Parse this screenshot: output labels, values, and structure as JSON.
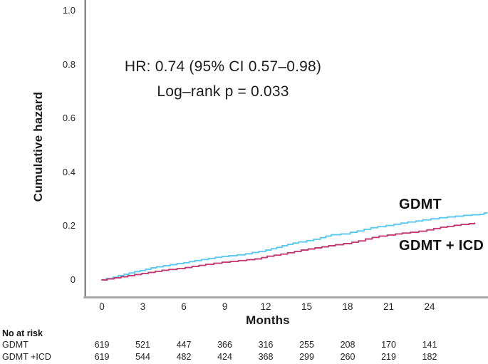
{
  "figure": {
    "annotation": {
      "line1": "HR: 0.74 (95% CI 0.57–0.98)",
      "line2": "Log–rank p = 0.033"
    },
    "y_axis_title": "Cumulative hazard",
    "x_axis_title": "Months",
    "curve_labels": {
      "gdmt": "GDMT",
      "gdmt_icd": "GDMT + ICD"
    },
    "risk_table_header": "No at risk"
  },
  "chart_data": {
    "type": "line",
    "subtype": "step-cumulative-hazard",
    "title": "",
    "xlabel": "Months",
    "ylabel": "Cumulative hazard",
    "xlim": [
      0,
      28.3
    ],
    "ylim": [
      0,
      1.0
    ],
    "x_ticks": [
      0,
      3,
      6,
      9,
      12,
      15,
      18,
      21,
      24
    ],
    "y_ticks": [
      0,
      0.2,
      0.4,
      0.6,
      0.8,
      1.0
    ],
    "grid": false,
    "legend_position": "curve-end-labels",
    "annotations": [
      "HR: 0.74 (95% CI 0.57–0.98)",
      "Log–rank p = 0.033"
    ],
    "colors": {
      "gdmt": "#5BC8F2",
      "gdmt_icd": "#C23B72",
      "x_axis_line": "#a8a8a8",
      "y_axis_line": "#444444"
    },
    "series": [
      {
        "name": "GDMT",
        "color": "#5BC8F2",
        "points": [
          [
            0,
            0
          ],
          [
            0.3,
            0.005
          ],
          [
            0.8,
            0.01
          ],
          [
            1.2,
            0.016
          ],
          [
            1.6,
            0.021
          ],
          [
            2.0,
            0.026
          ],
          [
            2.4,
            0.031
          ],
          [
            2.8,
            0.035
          ],
          [
            3.2,
            0.04
          ],
          [
            3.6,
            0.045
          ],
          [
            4.0,
            0.049
          ],
          [
            4.5,
            0.053
          ],
          [
            5.0,
            0.057
          ],
          [
            5.5,
            0.061
          ],
          [
            6.0,
            0.064
          ],
          [
            6.4,
            0.068
          ],
          [
            6.8,
            0.072
          ],
          [
            7.3,
            0.076
          ],
          [
            7.8,
            0.08
          ],
          [
            8.3,
            0.084
          ],
          [
            8.8,
            0.087
          ],
          [
            9.3,
            0.09
          ],
          [
            9.9,
            0.093
          ],
          [
            10.5,
            0.097
          ],
          [
            11.0,
            0.102
          ],
          [
            11.5,
            0.106
          ],
          [
            12.0,
            0.111
          ],
          [
            12.4,
            0.116
          ],
          [
            12.8,
            0.121
          ],
          [
            13.2,
            0.127
          ],
          [
            13.6,
            0.132
          ],
          [
            14.0,
            0.137
          ],
          [
            14.4,
            0.141
          ],
          [
            15.0,
            0.146
          ],
          [
            15.5,
            0.151
          ],
          [
            16.0,
            0.157
          ],
          [
            16.4,
            0.163
          ],
          [
            16.8,
            0.168
          ],
          [
            17.5,
            0.171
          ],
          [
            18.2,
            0.177
          ],
          [
            18.7,
            0.182
          ],
          [
            19.2,
            0.188
          ],
          [
            19.7,
            0.194
          ],
          [
            20.2,
            0.198
          ],
          [
            20.8,
            0.202
          ],
          [
            21.4,
            0.207
          ],
          [
            21.9,
            0.211
          ],
          [
            22.4,
            0.215
          ],
          [
            23.0,
            0.219
          ],
          [
            23.5,
            0.223
          ],
          [
            24.1,
            0.227
          ],
          [
            24.7,
            0.231
          ],
          [
            25.3,
            0.234
          ],
          [
            25.9,
            0.237
          ],
          [
            26.5,
            0.24
          ],
          [
            27.1,
            0.242
          ],
          [
            27.7,
            0.244
          ],
          [
            28.0,
            0.249
          ],
          [
            28.2,
            0.25
          ]
        ]
      },
      {
        "name": "GDMT + ICD",
        "color": "#C23B72",
        "points": [
          [
            0,
            0
          ],
          [
            0.4,
            0.004
          ],
          [
            0.9,
            0.008
          ],
          [
            1.4,
            0.012
          ],
          [
            1.9,
            0.016
          ],
          [
            2.4,
            0.02
          ],
          [
            2.9,
            0.024
          ],
          [
            3.4,
            0.028
          ],
          [
            3.9,
            0.032
          ],
          [
            4.4,
            0.036
          ],
          [
            4.9,
            0.039
          ],
          [
            5.5,
            0.042
          ],
          [
            6.1,
            0.046
          ],
          [
            6.6,
            0.05
          ],
          [
            7.1,
            0.054
          ],
          [
            7.6,
            0.058
          ],
          [
            8.2,
            0.062
          ],
          [
            8.8,
            0.066
          ],
          [
            9.4,
            0.069
          ],
          [
            10.0,
            0.072
          ],
          [
            10.6,
            0.075
          ],
          [
            11.2,
            0.078
          ],
          [
            11.7,
            0.083
          ],
          [
            12.1,
            0.088
          ],
          [
            12.6,
            0.092
          ],
          [
            13.1,
            0.096
          ],
          [
            13.6,
            0.101
          ],
          [
            14.1,
            0.106
          ],
          [
            14.6,
            0.111
          ],
          [
            15.1,
            0.115
          ],
          [
            15.6,
            0.119
          ],
          [
            16.1,
            0.123
          ],
          [
            16.6,
            0.127
          ],
          [
            17.1,
            0.131
          ],
          [
            17.7,
            0.135
          ],
          [
            18.3,
            0.14
          ],
          [
            18.8,
            0.145
          ],
          [
            19.3,
            0.152
          ],
          [
            19.8,
            0.158
          ],
          [
            20.3,
            0.163
          ],
          [
            20.9,
            0.167
          ],
          [
            21.5,
            0.171
          ],
          [
            22.0,
            0.174
          ],
          [
            22.6,
            0.177
          ],
          [
            23.2,
            0.181
          ],
          [
            23.8,
            0.186
          ],
          [
            24.3,
            0.191
          ],
          [
            24.8,
            0.196
          ],
          [
            25.3,
            0.199
          ],
          [
            25.8,
            0.203
          ],
          [
            26.3,
            0.206
          ],
          [
            26.9,
            0.209
          ],
          [
            27.3,
            0.211
          ]
        ]
      }
    ],
    "at_risk": {
      "header": "No at risk",
      "months": [
        0,
        3,
        6,
        9,
        12,
        15,
        18,
        21,
        24
      ],
      "rows": [
        {
          "label": "GDMT",
          "values": [
            619,
            521,
            447,
            366,
            316,
            255,
            208,
            170,
            141
          ]
        },
        {
          "label": "GDMT +ICD",
          "values": [
            619,
            544,
            482,
            424,
            368,
            299,
            260,
            219,
            182
          ]
        }
      ]
    }
  }
}
